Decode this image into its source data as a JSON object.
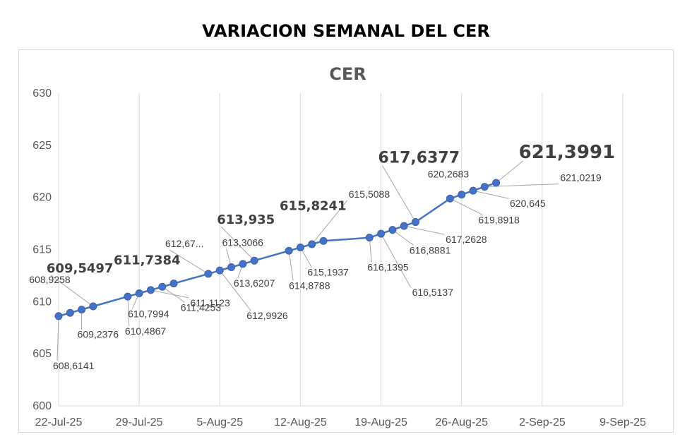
{
  "page": {
    "title": "VARIACION SEMANAL DEL CER"
  },
  "chart_data": {
    "type": "line",
    "title": "CER",
    "xlabel": "",
    "ylabel": "",
    "x_ticks": [
      "22-Jul-25",
      "29-Jul-25",
      "5-Aug-25",
      "12-Aug-25",
      "19-Aug-25",
      "26-Aug-25",
      "2-Sep-25",
      "9-Sep-25"
    ],
    "xlim": [
      "2025-07-22",
      "2025-09-09"
    ],
    "ylim": [
      600,
      630
    ],
    "y_ticks": [
      600,
      605,
      610,
      615,
      620,
      625,
      630
    ],
    "grid": {
      "vertical": true,
      "horizontal": false
    },
    "legend": "none",
    "colors": {
      "series": "#4472c4",
      "grid": "#d9d9d9",
      "text": "#595959",
      "callout": "#a6a6a6"
    },
    "series": [
      {
        "points": [
          {
            "date": "2025-07-22",
            "value": 608.6141,
            "label": "608,6141"
          },
          {
            "date": "2025-07-23",
            "value": 608.9258,
            "label": "608,9258"
          },
          {
            "date": "2025-07-24",
            "value": 609.2376,
            "label": "609,2376"
          },
          {
            "date": "2025-07-25",
            "value": 609.5497,
            "label": "609,5497"
          },
          {
            "date": "2025-07-28",
            "value": 610.4867,
            "label": "610,4867"
          },
          {
            "date": "2025-07-29",
            "value": 610.7994,
            "label": "610,7994"
          },
          {
            "date": "2025-07-30",
            "value": 611.1123,
            "label": "611,1123"
          },
          {
            "date": "2025-07-31",
            "value": 611.4253,
            "label": "611,4253"
          },
          {
            "date": "2025-08-01",
            "value": 611.7384,
            "label": "611,7384"
          },
          {
            "date": "2025-08-04",
            "value": 612.67,
            "label": "612,67..."
          },
          {
            "date": "2025-08-05",
            "value": 612.9926,
            "label": "612,9926"
          },
          {
            "date": "2025-08-06",
            "value": 613.3066,
            "label": "613,3066"
          },
          {
            "date": "2025-08-07",
            "value": 613.6207,
            "label": "613,6207"
          },
          {
            "date": "2025-08-08",
            "value": 613.935,
            "label": "613,935"
          },
          {
            "date": "2025-08-11",
            "value": 614.8788,
            "label": "614,8788"
          },
          {
            "date": "2025-08-12",
            "value": 615.1937,
            "label": "615,1937"
          },
          {
            "date": "2025-08-13",
            "value": 615.5088,
            "label": "615,5088"
          },
          {
            "date": "2025-08-14",
            "value": 615.8241,
            "label": "615,8241"
          },
          {
            "date": "2025-08-18",
            "value": 616.1395,
            "label": "616,1395"
          },
          {
            "date": "2025-08-19",
            "value": 616.5137,
            "label": "616,5137"
          },
          {
            "date": "2025-08-20",
            "value": 616.8881,
            "label": "616,8881"
          },
          {
            "date": "2025-08-21",
            "value": 617.2628,
            "label": "617,2628"
          },
          {
            "date": "2025-08-22",
            "value": 617.6377,
            "label": "617,6377"
          },
          {
            "date": "2025-08-25",
            "value": 619.8918,
            "label": "619,8918"
          },
          {
            "date": "2025-08-26",
            "value": 620.2683,
            "label": "620,2683"
          },
          {
            "date": "2025-08-27",
            "value": 620.645,
            "label": "620,645"
          },
          {
            "date": "2025-08-28",
            "value": 621.0219,
            "label": "621,0219"
          },
          {
            "date": "2025-08-29",
            "value": 621.3991,
            "label": "621,3991"
          }
        ]
      }
    ]
  }
}
